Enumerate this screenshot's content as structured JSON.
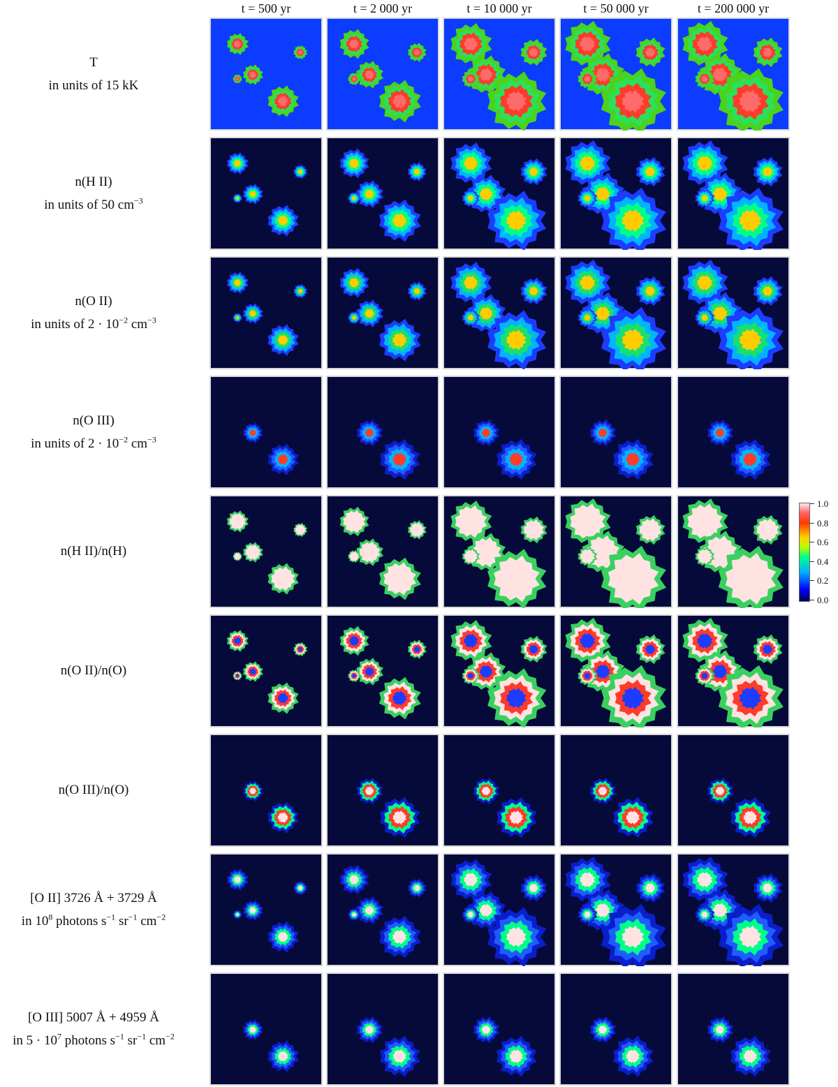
{
  "columns": [
    "t = 500 yr",
    "t = 2 000 yr",
    "t = 10 000 yr",
    "t = 50 000 yr",
    "t = 200 000 yr"
  ],
  "rows": [
    {
      "label_line1": "T",
      "label_line2": "in units of 15 kK"
    },
    {
      "label_line1": "n(H II)",
      "label_line2": "in units of 50 cm",
      "label_line2_sup": "−3"
    },
    {
      "label_line1": "n(O II)",
      "label_line2": "in units of 2 · 10",
      "label_line2_sup": "−2",
      "label_line2_tail": " cm",
      "label_line2_sup2": "−3"
    },
    {
      "label_line1": "n(O III)",
      "label_line2": "in units of 2 · 10",
      "label_line2_sup": "−2",
      "label_line2_tail": " cm",
      "label_line2_sup2": "−3"
    },
    {
      "label_line1": "n(H II)/n(H)"
    },
    {
      "label_line1": "n(O II)/n(O)"
    },
    {
      "label_line1": "n(O III)/n(O)"
    },
    {
      "label_line1": "[O II] 3726 Å + 3729 Å",
      "label_line2": "in 10",
      "label_line2_sup": "8",
      "label_line2_tail": " photons s",
      "label_line2_sup2": "−1",
      "label_line2_tail2": " sr",
      "label_line2_sup3": "−1",
      "label_line2_tail3": " cm",
      "label_line2_sup4": "−2"
    },
    {
      "label_line1": "[O III] 5007 Å + 4959 Å",
      "label_line2": "in 5 · 10",
      "label_line2_sup": "7",
      "label_line2_tail": " photons s",
      "label_line2_sup2": "−1",
      "label_line2_tail2": " sr",
      "label_line2_sup3": "−1",
      "label_line2_tail3": " cm",
      "label_line2_sup4": "−2"
    }
  ],
  "colorbar": {
    "ticks": [
      "1.0",
      "0.8",
      "0.6",
      "0.4",
      "0.2",
      "0.0"
    ],
    "colors": {
      "background": "#050a3a",
      "temperature_background": "#0b3cff"
    }
  }
}
